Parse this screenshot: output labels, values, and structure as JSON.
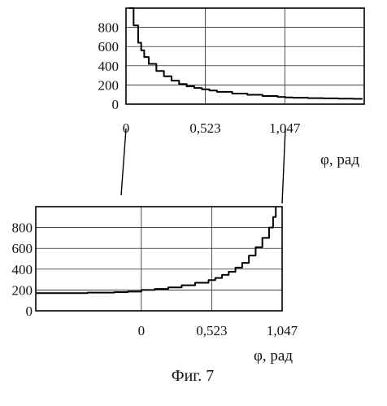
{
  "chart_data": [
    {
      "type": "line",
      "title": "",
      "xlabel": "φ, рад",
      "ylabel": "",
      "xlim": [
        0,
        1.571
      ],
      "ylim": [
        0,
        1000
      ],
      "grid": true,
      "y_ticks": [
        "800",
        "600",
        "400",
        "200",
        "0"
      ],
      "y_tick_values": [
        800,
        600,
        400,
        200,
        0
      ],
      "x_ticks": [
        "0",
        "0,523",
        "1,047"
      ],
      "x_tick_values": [
        0,
        0.523,
        1.047
      ],
      "series": [
        {
          "x": [
            0.02,
            0.05,
            0.08,
            0.1,
            0.12,
            0.15,
            0.2,
            0.25,
            0.3,
            0.35,
            0.4,
            0.45,
            0.5,
            0.55,
            0.6,
            0.7,
            0.8,
            0.9,
            1.0,
            1.05,
            1.1,
            1.2,
            1.3,
            1.4,
            1.5,
            1.56
          ],
          "y": [
            1000,
            820,
            640,
            560,
            490,
            420,
            345,
            290,
            245,
            210,
            185,
            168,
            155,
            142,
            128,
            110,
            97,
            85,
            75,
            70,
            67,
            63,
            60,
            57,
            55,
            55
          ]
        }
      ]
    },
    {
      "type": "line",
      "title": "",
      "xlabel": "φ, рад",
      "ylabel": "",
      "xlim": [
        -0.785,
        1.047
      ],
      "ylim": [
        0,
        1000
      ],
      "grid": true,
      "y_ticks": [
        "800",
        "600",
        "400",
        "200",
        "0"
      ],
      "y_tick_values": [
        800,
        600,
        400,
        200,
        0
      ],
      "x_ticks": [
        "0",
        "0,523",
        "1,047"
      ],
      "x_tick_values": [
        0,
        0.523,
        1.047
      ],
      "series": [
        {
          "x": [
            -0.78,
            -0.6,
            -0.4,
            -0.2,
            -0.1,
            0.0,
            0.1,
            0.2,
            0.3,
            0.4,
            0.5,
            0.55,
            0.6,
            0.65,
            0.7,
            0.75,
            0.8,
            0.85,
            0.9,
            0.95,
            0.98,
            1.0
          ],
          "y": [
            170,
            170,
            175,
            180,
            185,
            200,
            210,
            225,
            245,
            270,
            295,
            315,
            345,
            375,
            415,
            460,
            530,
            610,
            700,
            800,
            900,
            1000
          ]
        }
      ]
    }
  ],
  "caption": "Фиг. 7"
}
